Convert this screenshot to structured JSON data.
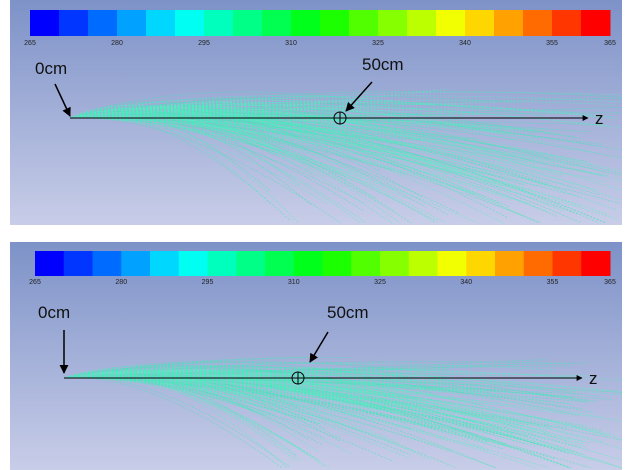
{
  "panels": [
    {
      "colorbar": {
        "ticks": [
          265,
          280,
          295,
          310,
          325,
          340,
          355,
          365
        ]
      },
      "source_label": "0cm",
      "mark_label": "50cm",
      "axis_label": "z"
    },
    {
      "colorbar": {
        "ticks": [
          265,
          280,
          295,
          310,
          325,
          340,
          355,
          365
        ]
      },
      "source_label": "0cm",
      "mark_label": "50cm",
      "axis_label": "z"
    }
  ]
}
